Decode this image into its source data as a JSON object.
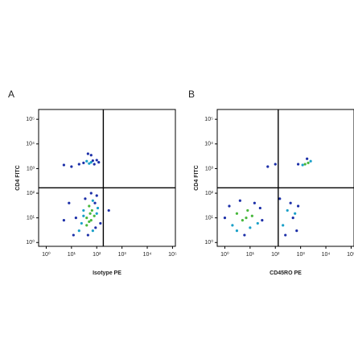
{
  "chart_data": [
    {
      "type": "scatter",
      "panel_label": "A",
      "x_label": "Isotype PE",
      "y_label": "CD4 FITC",
      "xscale": "log",
      "yscale": "log",
      "xlim": [
        0.5,
        130000
      ],
      "ylim": [
        0.7,
        250000
      ],
      "xticks": [
        {
          "value": 1,
          "label": "10⁰"
        },
        {
          "value": 10,
          "label": "10¹"
        },
        {
          "value": 100,
          "label": "10²"
        },
        {
          "value": 1000,
          "label": "10³"
        },
        {
          "value": 10000,
          "label": "10⁴"
        },
        {
          "value": 100000,
          "label": "10⁵"
        }
      ],
      "yticks": [
        {
          "value": 1,
          "label": "10⁰"
        },
        {
          "value": 10,
          "label": "10¹"
        },
        {
          "value": 100,
          "label": "10²"
        },
        {
          "value": 1000,
          "label": "10³"
        },
        {
          "value": 10000,
          "label": "10⁴"
        },
        {
          "value": 100000,
          "label": "10⁵"
        }
      ],
      "x_gate": 182,
      "y_gate": 166,
      "gate_color": "#000000",
      "x": [
        20,
        40,
        60,
        80,
        30,
        50,
        70,
        100,
        15,
        25,
        45,
        90,
        110,
        35,
        60,
        8,
        12,
        70,
        55,
        40,
        65,
        50,
        30,
        85,
        140,
        300,
        5,
        100,
        20,
        40,
        60,
        80,
        100,
        10,
        30,
        50,
        70,
        5,
        120,
        45,
        60
      ],
      "y": [
        3,
        5,
        8,
        12,
        20,
        30,
        50,
        15,
        10,
        6,
        2,
        4,
        25,
        60,
        100,
        40,
        2,
        3,
        15,
        10,
        20,
        7,
        12,
        40,
        6,
        20,
        8,
        80,
        1500,
        2000,
        1800,
        1500,
        2200,
        1200,
        1700,
        1600,
        2100,
        1400,
        1800,
        4000,
        3500
      ],
      "colors": [
        "#1aa0c8",
        "#48b83c",
        "#48b83c",
        "#48b83c",
        "#1aa0c8",
        "#48b83c",
        "#1aa0c8",
        "#1aa0c8",
        "#1c2fa8",
        "#1aa0c8",
        "#1c2fa8",
        "#1c2fa8",
        "#1aa0c8",
        "#1c2fa8",
        "#1c2fa8",
        "#1c2fa8",
        "#1c2fa8",
        "#1aa0c8",
        "#48b83c",
        "#48b83c",
        "#48b83c",
        "#48b83c",
        "#1aa0c8",
        "#1c2fa8",
        "#1c2fa8",
        "#1c2fa8",
        "#1c2fa8",
        "#1c2fa8",
        "#1c2fa8",
        "#1aa0c8",
        "#1aa0c8",
        "#1c2fa8",
        "#1c2fa8",
        "#1c2fa8",
        "#1c2fa8",
        "#1aa0c8",
        "#1c2fa8",
        "#1c2fa8",
        "#1c2fa8",
        "#1c2fa8",
        "#1c2fa8"
      ]
    },
    {
      "type": "scatter",
      "panel_label": "B",
      "x_label": "CD45RO PE",
      "y_label": "CD4 FITC",
      "xscale": "log",
      "yscale": "log",
      "xlim": [
        0.5,
        130000
      ],
      "ylim": [
        0.7,
        250000
      ],
      "xticks": [
        {
          "value": 1,
          "label": "10⁰"
        },
        {
          "value": 10,
          "label": "10¹"
        },
        {
          "value": 100,
          "label": "10²"
        },
        {
          "value": 1000,
          "label": "10³"
        },
        {
          "value": 10000,
          "label": "10⁴"
        },
        {
          "value": 100000,
          "label": "10⁵"
        }
      ],
      "yticks": [
        {
          "value": 1,
          "label": "10⁰"
        },
        {
          "value": 10,
          "label": "10¹"
        },
        {
          "value": 100,
          "label": "10²"
        },
        {
          "value": 1000,
          "label": "10³"
        },
        {
          "value": 10000,
          "label": "10⁴"
        },
        {
          "value": 100000,
          "label": "10⁵"
        }
      ],
      "x_gate": 130,
      "y_gate": 166,
      "gate_color": "#000000",
      "x": [
        2,
        3,
        5,
        8,
        10,
        1.5,
        4,
        6,
        12,
        20,
        25,
        3,
        7,
        15,
        1,
        30,
        200,
        300,
        500,
        700,
        400,
        600,
        250,
        800,
        150,
        1500,
        2000,
        1200,
        2500,
        800,
        100,
        50,
        1800
      ],
      "y": [
        5,
        15,
        8,
        20,
        4,
        30,
        50,
        2,
        12,
        6,
        25,
        3,
        10,
        40,
        10,
        8,
        5,
        20,
        10,
        3,
        40,
        15,
        2,
        30,
        60,
        1500,
        1700,
        1400,
        2000,
        1500,
        1500,
        1200,
        2500
      ],
      "colors": [
        "#1aa0c8",
        "#48b83c",
        "#48b83c",
        "#48b83c",
        "#1aa0c8",
        "#1c2fa8",
        "#1c2fa8",
        "#1c2fa8",
        "#48b83c",
        "#1aa0c8",
        "#1c2fa8",
        "#1aa0c8",
        "#48b83c",
        "#1c2fa8",
        "#1c2fa8",
        "#1c2fa8",
        "#1aa0c8",
        "#1aa0c8",
        "#1c2fa8",
        "#1c2fa8",
        "#1c2fa8",
        "#1aa0c8",
        "#1c2fa8",
        "#1c2fa8",
        "#1c2fa8",
        "#48b83c",
        "#48b83c",
        "#1aa0c8",
        "#1aa0c8",
        "#1c2fa8",
        "#1c2fa8",
        "#1c2fa8",
        "#1c2fa8"
      ]
    }
  ]
}
